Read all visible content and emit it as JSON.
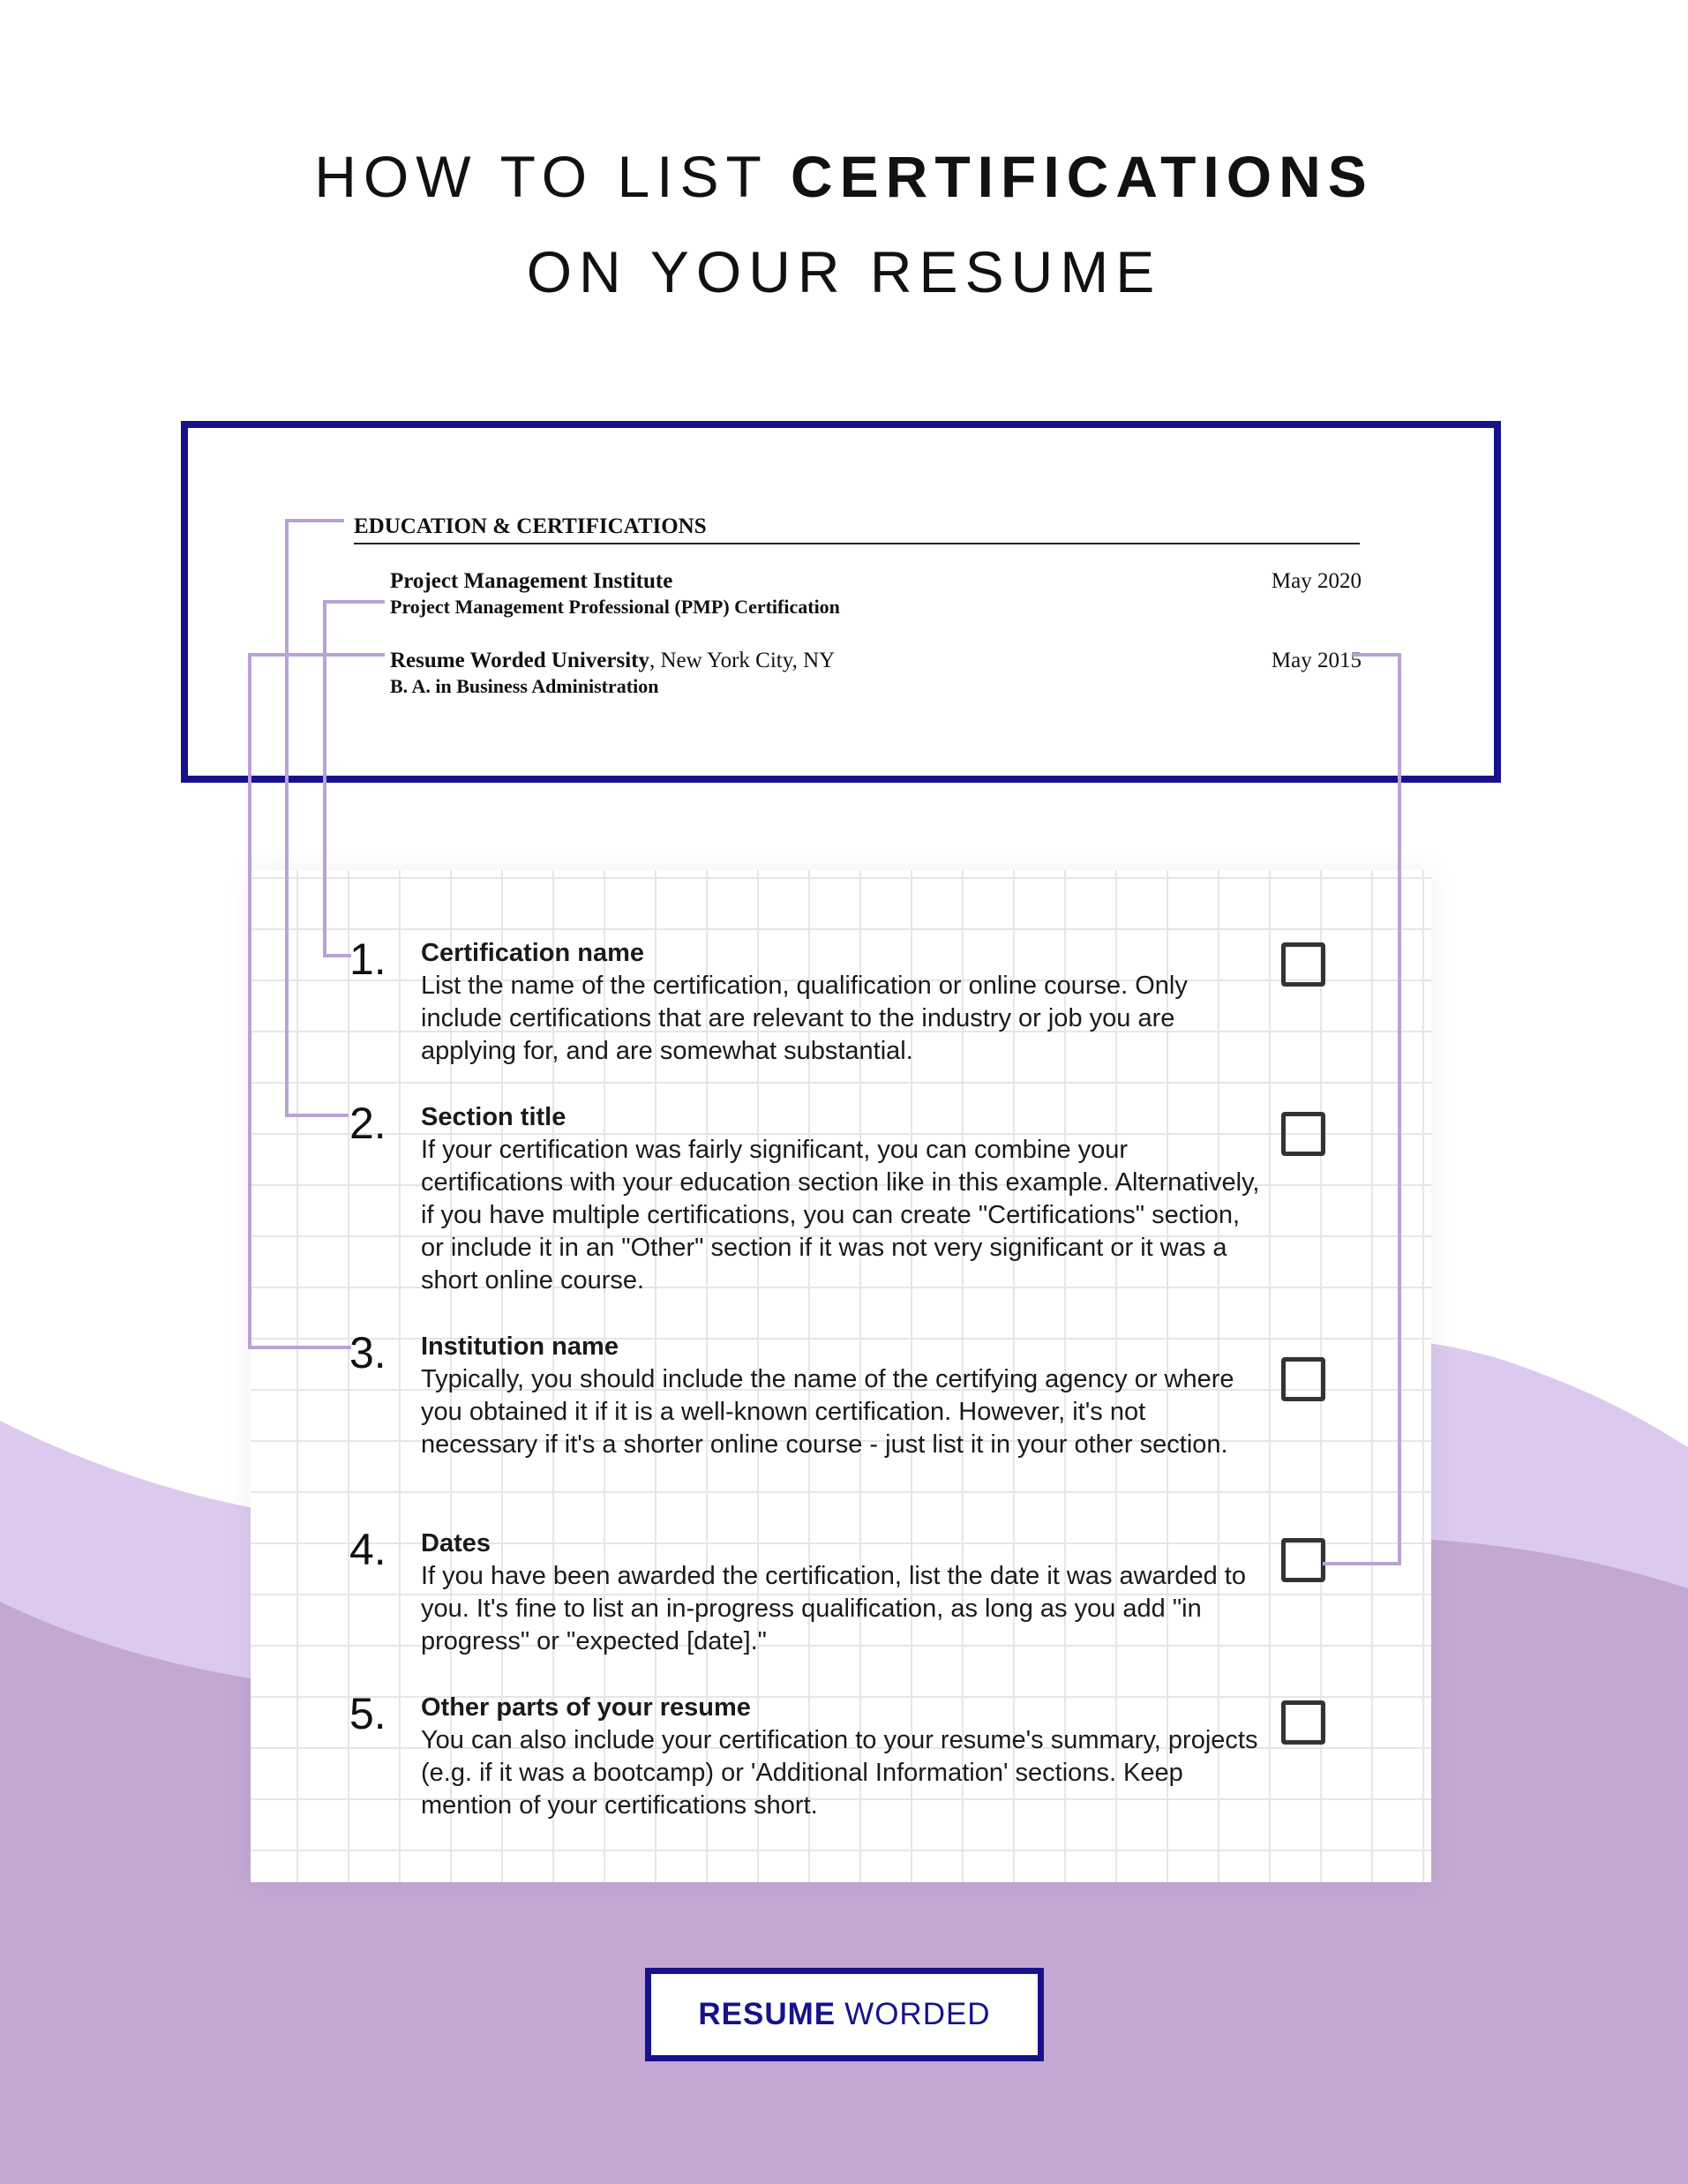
{
  "title": {
    "line1_prefix": "HOW TO LIST ",
    "line1_bold": "CERTIFICATIONS",
    "line2": "ON YOUR RESUME"
  },
  "resume": {
    "section_heading": "EDUCATION & CERTIFICATIONS",
    "entries": [
      {
        "institution": "Project Management Institute",
        "location": "",
        "credential": "Project Management Professional (PMP) Certification",
        "date": "May 2020"
      },
      {
        "institution": "Resume Worded University",
        "location": ", New York City, NY",
        "credential": "B. A. in Business Administration",
        "date": "May 2015"
      }
    ]
  },
  "checklist": [
    {
      "number": "1.",
      "title": "Certification name",
      "body": "List the name of the certification, qualification or online course. Only include certifications that are relevant to the industry or job you are applying for, and are somewhat substantial.",
      "checked": false
    },
    {
      "number": "2.",
      "title": "Section title",
      "body": "If your certification was fairly significant, you can combine your certifications with your education section like in this example. Alternatively, if you have multiple certifications, you can create \"Certifications\" section, or include it in an \"Other\" section if it was not very significant or it was a short online course.",
      "checked": false
    },
    {
      "number": "3.",
      "title": "Institution name",
      "body": "Typically, you should include the name of the certifying agency or where you obtained it if it is a well-known certification. However, it's not necessary if it's a shorter online course - just list it in your other section.",
      "checked": false
    },
    {
      "number": "4.",
      "title": "Dates",
      "body": "If you have been awarded the certification, list the date it was awarded to you. It's fine to list an in-progress qualification, as long as you add \"in progress\" or \"expected [date].\"",
      "checked": false
    },
    {
      "number": "5.",
      "title": "Other parts of your resume",
      "body": "You can also include your certification to your resume's summary, projects (e.g. if it was a bootcamp) or 'Additional Information' sections. Keep mention of your certifications short.",
      "checked": false
    }
  ],
  "brand": {
    "bold": "RESUME",
    "regular": "WORDED"
  },
  "colors": {
    "navy": "#17128a",
    "connector": "#b9a3d6",
    "wave_light": "#dccaee",
    "wave_dark": "#c3a8d4"
  }
}
